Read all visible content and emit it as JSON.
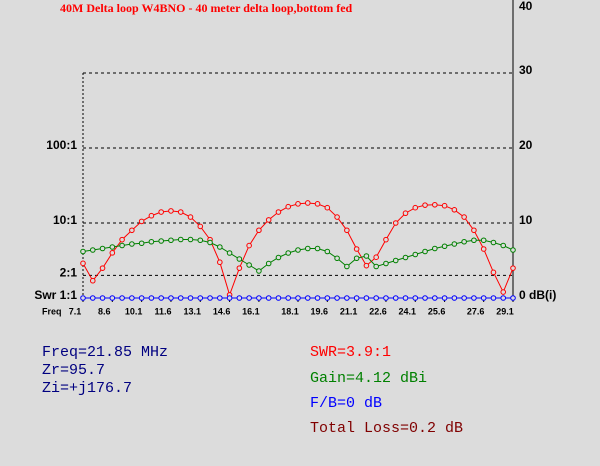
{
  "chart_data": {
    "type": "line",
    "title": "40M Delta loop W4BNO - 40 meter delta loop,bottom fed",
    "xlabel": "Freq",
    "x": [
      7.1,
      7.6,
      8.1,
      8.6,
      9.1,
      9.6,
      10.1,
      10.6,
      11.1,
      11.6,
      12.1,
      12.6,
      13.1,
      13.6,
      14.1,
      14.6,
      15.1,
      15.6,
      16.1,
      16.6,
      17.1,
      17.6,
      18.1,
      18.6,
      19.1,
      19.6,
      20.1,
      20.6,
      21.1,
      21.6,
      22.1,
      22.6,
      23.1,
      23.6,
      24.1,
      24.6,
      25.1,
      25.6,
      26.1,
      26.6,
      27.1,
      27.6,
      28.1,
      28.6,
      29.1
    ],
    "xlim": [
      7.1,
      29.1
    ],
    "xticks": [
      7.1,
      8.6,
      10.1,
      11.6,
      13.1,
      14.6,
      16.1,
      18.1,
      19.6,
      21.1,
      22.6,
      24.1,
      25.6,
      27.6,
      29.1
    ],
    "ylim": [
      1,
      10000
    ],
    "yscale": "log",
    "yticks": [
      {
        "value": 1,
        "label": "Swr 1:1"
      },
      {
        "value": 2,
        "label": "2:1"
      },
      {
        "value": 10,
        "label": "10:1"
      },
      {
        "value": 100,
        "label": "100:1"
      }
    ],
    "y2lim": [
      0,
      40
    ],
    "y2ticks": [
      {
        "value": 0,
        "label": "0 dB(i)"
      },
      10,
      20,
      30,
      40
    ],
    "grid": true,
    "series": [
      {
        "name": "SWR",
        "color": "#ff0000",
        "values": [
          2.9,
          1.7,
          2.5,
          4,
          6,
          8,
          10.5,
          12.5,
          14,
          14.5,
          14,
          12,
          9,
          6,
          3,
          1.1,
          2.5,
          5,
          8,
          11,
          14,
          16.5,
          18,
          18.5,
          18,
          16,
          12,
          8,
          4.5,
          2.7,
          3.5,
          6,
          10,
          13.5,
          16,
          17.3,
          17.5,
          17,
          15,
          12,
          8,
          4.5,
          2.2,
          1.2,
          2.5
        ]
      },
      {
        "name": "Gain",
        "color": "#008000",
        "axis": "y2",
        "values": [
          6.2,
          6.4,
          6.6,
          6.8,
          7.0,
          7.2,
          7.3,
          7.5,
          7.6,
          7.7,
          7.8,
          7.8,
          7.7,
          7.4,
          6.8,
          6.0,
          5.2,
          4.4,
          3.6,
          4.6,
          5.4,
          6.0,
          6.4,
          6.6,
          6.6,
          6.2,
          5.3,
          4.2,
          5.3,
          5.6,
          4.2,
          4.6,
          5.0,
          5.4,
          5.8,
          6.2,
          6.6,
          6.9,
          7.2,
          7.5,
          7.7,
          7.7,
          7.4,
          7.0,
          6.4
        ]
      },
      {
        "name": "F/B",
        "color": "#0000ff",
        "axis": "y2",
        "values": [
          0,
          0,
          0,
          0,
          0,
          0,
          0,
          0,
          0,
          0,
          0,
          0,
          0,
          0,
          0,
          0,
          0,
          0,
          0,
          0,
          0,
          0,
          0,
          0,
          0,
          0,
          0,
          0,
          0,
          0,
          0,
          0,
          0,
          0,
          0,
          0,
          0,
          0,
          0,
          0,
          0,
          0,
          0,
          0,
          0
        ]
      }
    ],
    "readouts": [
      {
        "text": "Freq=21.85 MHz",
        "color": "#000080"
      },
      {
        "text": "Zr=95.7",
        "color": "#000080"
      },
      {
        "text": "Zi=+j176.7",
        "color": "#000080"
      },
      {
        "text": "SWR=3.9:1",
        "color": "#ff0000"
      },
      {
        "text": "Gain=4.12 dBi",
        "color": "#008000"
      },
      {
        "text": "F/B=0 dB",
        "color": "#0000ff"
      },
      {
        "text": "Total Loss=0.2 dB",
        "color": "#800000"
      }
    ]
  }
}
